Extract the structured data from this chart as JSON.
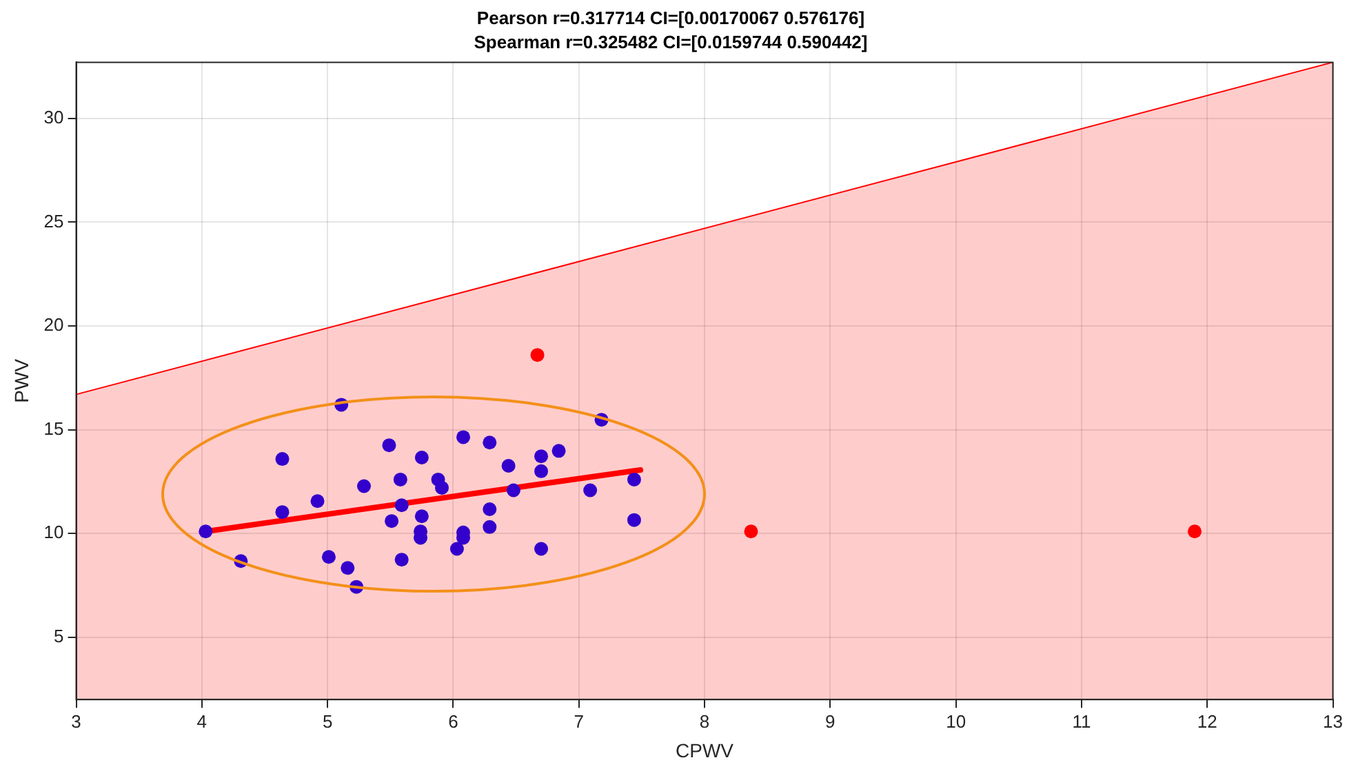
{
  "chart_data": {
    "type": "scatter",
    "title": "Pearson r=0.317714 CI=[0.00170067 0.576176]",
    "subtitle": "Spearman r=0.325482 CI=[0.0159744 0.590442]",
    "xlabel": "CPWV",
    "ylabel": "PWV",
    "xlim": [
      3,
      13
    ],
    "ylim": [
      2,
      32.7
    ],
    "xticks": [
      3,
      4,
      5,
      6,
      7,
      8,
      9,
      10,
      11,
      12,
      13
    ],
    "yticks": [
      5,
      10,
      15,
      20,
      25,
      30
    ],
    "grid": true,
    "legend": false,
    "series": [
      {
        "type": "area",
        "marker": "none",
        "color": "#ff0000",
        "x": [
          3,
          13
        ],
        "values": [
          16.7,
          32.7
        ]
      },
      {
        "type": "line",
        "marker": "none",
        "color": "#ff0000",
        "x": [
          4.03,
          7.49
        ],
        "values": [
          10.1,
          13.06
        ]
      },
      {
        "type": "scatter",
        "marker": "circle",
        "color": "#3300cc",
        "x": [
          4.03,
          4.31,
          4.64,
          4.64,
          4.92,
          5.01,
          5.11,
          5.16,
          5.23,
          5.29,
          5.49,
          5.51,
          5.58,
          5.59,
          5.59,
          5.75,
          5.75,
          5.74,
          5.74,
          5.88,
          5.91,
          6.08,
          6.29,
          6.44,
          6.7,
          6.7,
          6.84,
          7.18,
          6.48,
          7.09,
          7.44,
          7.44,
          6.08,
          6.08,
          6.03,
          6.29,
          6.29,
          6.7
        ],
        "values": [
          10.1,
          8.67,
          13.59,
          11.03,
          11.56,
          8.87,
          16.2,
          8.34,
          7.43,
          12.28,
          14.25,
          10.6,
          12.6,
          11.36,
          8.74,
          13.66,
          10.83,
          10.1,
          9.79,
          12.6,
          12.2,
          14.64,
          14.38,
          13.26,
          13.72,
          13.0,
          13.98,
          15.48,
          12.08,
          12.08,
          12.6,
          10.65,
          10.05,
          9.79,
          9.26,
          11.17,
          10.31,
          9.26
        ]
      },
      {
        "type": "scatter",
        "marker": "circle",
        "color": "#ff0000",
        "x": [
          6.67,
          8.37,
          11.9
        ],
        "values": [
          18.6,
          10.1,
          10.1
        ]
      }
    ]
  }
}
